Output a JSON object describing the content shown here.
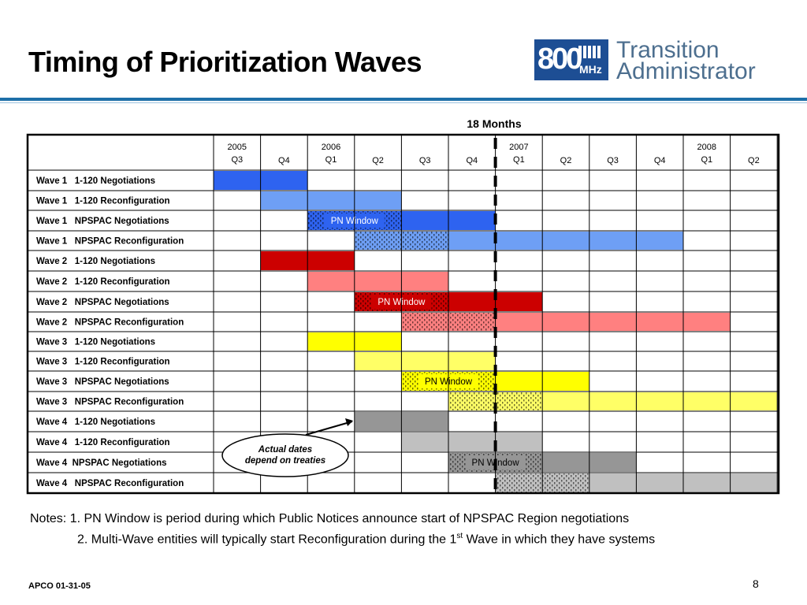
{
  "title": "Timing of Prioritization Waves",
  "logo": {
    "number": "800",
    "unit": "MHz",
    "line1": "Transition",
    "line2": "Administrator"
  },
  "colors": {
    "accent_rule": "#1e6fa8",
    "logo_blue": "#1d4e94",
    "wave1_dark": "#2e63f0",
    "wave1_light": "#6e9ff5",
    "wave2_dark": "#cc0000",
    "wave2_light": "#ff8080",
    "wave3_dark": "#ffff00",
    "wave3_light": "#ffff66",
    "wave4_dark": "#969696",
    "wave4_light": "#c0c0c0"
  },
  "chart_data": {
    "type": "table",
    "span_label": "18 Months",
    "columns": [
      {
        "year": "2005",
        "quarter": "Q3"
      },
      {
        "year": "",
        "quarter": "Q4"
      },
      {
        "year": "2006",
        "quarter": "Q1"
      },
      {
        "year": "",
        "quarter": "Q2"
      },
      {
        "year": "",
        "quarter": "Q3"
      },
      {
        "year": "",
        "quarter": "Q4"
      },
      {
        "year": "2007",
        "quarter": "Q1"
      },
      {
        "year": "",
        "quarter": "Q2"
      },
      {
        "year": "",
        "quarter": "Q3"
      },
      {
        "year": "",
        "quarter": "Q4"
      },
      {
        "year": "2008",
        "quarter": "Q1"
      },
      {
        "year": "",
        "quarter": "Q2"
      }
    ],
    "rows": [
      {
        "label": "Wave 1   1-120 Negotiations",
        "wave": 1,
        "bars": [
          {
            "start": "2005 Q3",
            "end": "2005 Q4",
            "shade": "dark"
          }
        ]
      },
      {
        "label": "Wave 1   1-120 Reconfiguration",
        "wave": 1,
        "bars": [
          {
            "start": "2005 Q4",
            "end": "2006 Q2",
            "shade": "light"
          }
        ]
      },
      {
        "label": "Wave 1   NPSPAC Negotiations",
        "wave": 1,
        "bars": [
          {
            "start": "2006 Q1",
            "end": "2006 Q2",
            "shade": "dark",
            "pattern": true,
            "text": "PN Window"
          },
          {
            "start": "2006 Q3",
            "end": "2006 Q4",
            "shade": "dark"
          }
        ]
      },
      {
        "label": "Wave 1   NPSPAC Reconfiguration",
        "wave": 1,
        "bars": [
          {
            "start": "2006 Q2",
            "end": "2006 Q3",
            "shade": "light",
            "pattern": true
          },
          {
            "start": "2006 Q4",
            "end": "2007 Q4",
            "shade": "light"
          }
        ]
      },
      {
        "label": "Wave 2   1-120 Negotiations",
        "wave": 2,
        "bars": [
          {
            "start": "2005 Q4",
            "end": "2006 Q1",
            "shade": "dark"
          }
        ]
      },
      {
        "label": "Wave 2   1-120 Reconfiguration",
        "wave": 2,
        "bars": [
          {
            "start": "2006 Q1",
            "end": "2006 Q3",
            "shade": "light"
          }
        ]
      },
      {
        "label": "Wave 2   NPSPAC Negotiations",
        "wave": 2,
        "bars": [
          {
            "start": "2006 Q2",
            "end": "2006 Q3",
            "shade": "dark",
            "pattern": true,
            "text": "PN Window"
          },
          {
            "start": "2006 Q4",
            "end": "2007 Q1",
            "shade": "dark"
          }
        ]
      },
      {
        "label": "Wave 2   NPSPAC Reconfiguration",
        "wave": 2,
        "bars": [
          {
            "start": "2006 Q3",
            "end": "2006 Q4",
            "shade": "light",
            "pattern": true
          },
          {
            "start": "2007 Q1",
            "end": "2008 Q1",
            "shade": "light"
          }
        ]
      },
      {
        "label": "Wave 3   1-120 Negotiations",
        "wave": 3,
        "bars": [
          {
            "start": "2006 Q1",
            "end": "2006 Q2",
            "shade": "dark"
          }
        ]
      },
      {
        "label": "Wave 3   1-120 Reconfiguration",
        "wave": 3,
        "bars": [
          {
            "start": "2006 Q2",
            "end": "2006 Q4",
            "shade": "light"
          }
        ]
      },
      {
        "label": "Wave 3   NPSPAC Negotiations",
        "wave": 3,
        "bars": [
          {
            "start": "2006 Q3",
            "end": "2006 Q4",
            "shade": "dark",
            "pattern": true,
            "text": "PN Window"
          },
          {
            "start": "2007 Q1",
            "end": "2007 Q2",
            "shade": "dark"
          }
        ]
      },
      {
        "label": "Wave 3   NPSPAC Reconfiguration",
        "wave": 3,
        "bars": [
          {
            "start": "2006 Q4",
            "end": "2007 Q1",
            "shade": "light",
            "pattern": true
          },
          {
            "start": "2007 Q2",
            "end": "2008 Q2",
            "shade": "light"
          }
        ]
      },
      {
        "label": "Wave 4   1-120 Negotiations",
        "wave": 4,
        "bars": [
          {
            "start": "2006 Q2",
            "end": "2006 Q3",
            "shade": "dark"
          }
        ]
      },
      {
        "label": "Wave 4   1-120 Reconfiguration",
        "wave": 4,
        "bars": [
          {
            "start": "2006 Q3",
            "end": "2007 Q1",
            "shade": "light"
          }
        ]
      },
      {
        "label": "Wave 4  NPSPAC Negotiations",
        "wave": 4,
        "bars": [
          {
            "start": "2006 Q4",
            "end": "2007 Q1",
            "shade": "dark",
            "pattern": true,
            "text": "PN Window"
          },
          {
            "start": "2007 Q2",
            "end": "2007 Q3",
            "shade": "dark"
          }
        ]
      },
      {
        "label": "Wave 4   NPSPAC Reconfiguration",
        "wave": 4,
        "bars": [
          {
            "start": "2007 Q1",
            "end": "2007 Q2",
            "shade": "light",
            "pattern": true
          },
          {
            "start": "2007 Q3",
            "end": "2008 Q2",
            "shade": "light"
          }
        ]
      }
    ],
    "marker_after": "2006 Q4",
    "callout": {
      "line1": "Actual dates",
      "line2": "depend on treaties"
    }
  },
  "notes": {
    "line1": "Notes: 1.  PN Window is period during which Public Notices announce start of NPSPAC Region negotiations",
    "line2_pre": "2.  Multi-Wave entities will typically start Reconfiguration during the 1",
    "line2_sup": "st",
    "line2_post": " Wave in which they have systems"
  },
  "footer": {
    "left": "APCO 01-31-05",
    "page": "8"
  }
}
